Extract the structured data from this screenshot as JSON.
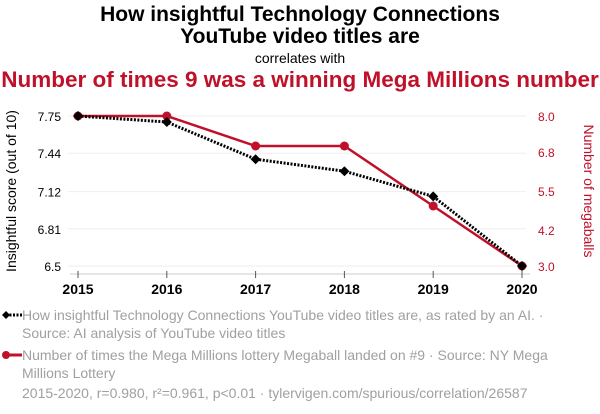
{
  "header": {
    "title_line1": "How insightful Technology Connections",
    "title_line2": "YouTube video titles are",
    "subtitle": "correlates with",
    "title_line3": "Number of times 9 was a winning Mega Millions number"
  },
  "colors": {
    "series1": "#000000",
    "series2": "#c0112b",
    "grid": "#eeeeee",
    "legend_text": "#a0a0a0"
  },
  "chart_data": {
    "type": "line",
    "title": "How insightful Technology Connections YouTube video titles are correlates with Number of times 9 was a winning Mega Millions number",
    "x": [
      "2015",
      "2016",
      "2017",
      "2018",
      "2019",
      "2020"
    ],
    "xlabel": "",
    "ylabel_left": "Insightful score (out of 10)",
    "ylabel_right": "Number of megaballs",
    "yticks_left": [
      "6.5",
      "6.81",
      "7.12",
      "7.44",
      "7.75"
    ],
    "yticks_right": [
      "3.0",
      "4.2",
      "5.5",
      "6.8",
      "8.0"
    ],
    "ylim_left": [
      6.5,
      7.75
    ],
    "ylim_right": [
      3.0,
      8.0
    ],
    "grid": true,
    "legend_position": "bottom",
    "series": [
      {
        "name": "How insightful Technology Connections YouTube video titles are, as rated by an AI. · Source: AI analysis of YouTube video titles",
        "axis": "left",
        "style": "dotted",
        "marker": "diamond",
        "values": [
          7.75,
          7.7,
          7.39,
          7.29,
          7.08,
          6.5
        ]
      },
      {
        "name": "Number of times the Mega Millions lottery Megaball landed on #9 · Source: NY Mega Millions Lottery",
        "axis": "right",
        "style": "solid",
        "marker": "circle",
        "values": [
          8,
          8,
          7,
          7,
          5,
          3
        ]
      }
    ]
  },
  "legend": {
    "item1": "How insightful Technology Connections YouTube video titles are, as rated by an AI. · Source: AI analysis of YouTube video titles",
    "item2": "Number of times the Mega Millions lottery Megaball landed on #9 · Source: NY Mega Millions Lottery"
  },
  "footer": "2015-2020, r=0.980, r²=0.961, p<0.01 · tylervigen.com/spurious/correlation/26587"
}
